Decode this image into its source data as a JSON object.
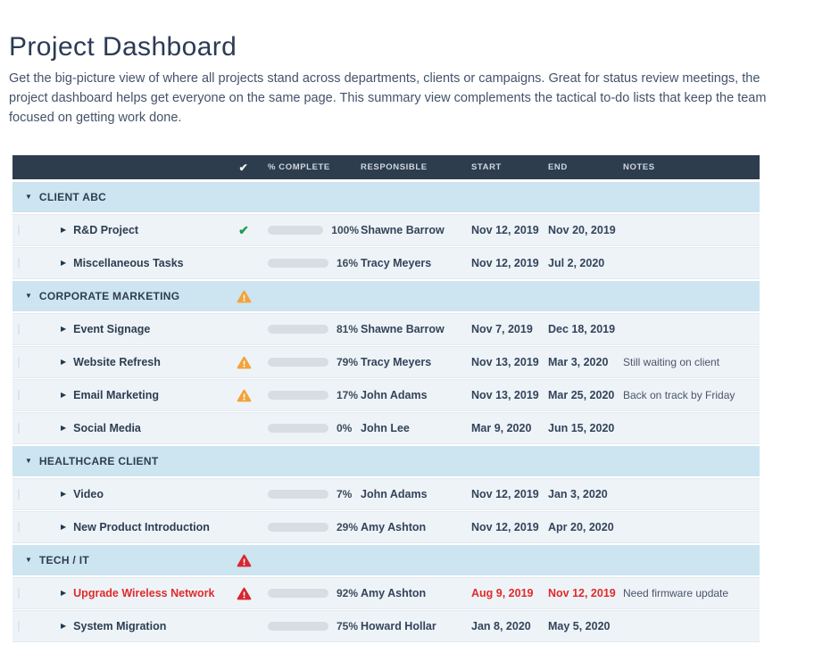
{
  "page": {
    "title": "Project Dashboard",
    "description": "Get the big-picture view of where all projects stand across departments, clients or campaigns. Great for status review meetings, the project dashboard helps get everyone on the same page. This summary view complements the tactical to-do lists that keep the team focused on getting work done."
  },
  "table": {
    "headers": {
      "check_icon": "✔",
      "complete": "% COMPLETE",
      "responsible": "RESPONSIBLE",
      "start": "START",
      "end": "END",
      "notes": "NOTES"
    },
    "groups": [
      {
        "name": "CLIENT ABC",
        "status": null,
        "rows": [
          {
            "task": "R&D Project",
            "status": "check",
            "percent": 100,
            "bar": "green",
            "responsible": "Shawne Barrow",
            "start": "Nov 12, 2019",
            "end": "Nov 20, 2019",
            "notes": "",
            "danger": false
          },
          {
            "task": "Miscellaneous Tasks",
            "status": null,
            "percent": 16,
            "bar": "blue",
            "responsible": "Tracy Meyers",
            "start": "Nov 12, 2019",
            "end": "Jul 2, 2020",
            "notes": "",
            "danger": false
          }
        ]
      },
      {
        "name": "CORPORATE MARKETING",
        "status": "warning",
        "rows": [
          {
            "task": "Event Signage",
            "status": null,
            "percent": 81,
            "bar": "blue",
            "responsible": "Shawne Barrow",
            "start": "Nov 7, 2019",
            "end": "Dec 18, 2019",
            "notes": "",
            "danger": false
          },
          {
            "task": "Website Refresh",
            "status": "warning",
            "percent": 79,
            "bar": "orange",
            "responsible": "Tracy Meyers",
            "start": "Nov 13, 2019",
            "end": "Mar 3, 2020",
            "notes": "Still waiting on client",
            "danger": false
          },
          {
            "task": "Email Marketing",
            "status": "warning",
            "percent": 17,
            "bar": "orange",
            "responsible": "John Adams",
            "start": "Nov 13, 2019",
            "end": "Mar 25, 2020",
            "notes": "Back on track by Friday",
            "danger": false
          },
          {
            "task": "Social Media",
            "status": null,
            "percent": 0,
            "bar": null,
            "responsible": "John Lee",
            "start": "Mar 9, 2020",
            "end": "Jun 15, 2020",
            "notes": "",
            "danger": false
          }
        ]
      },
      {
        "name": "HEALTHCARE CLIENT",
        "status": null,
        "rows": [
          {
            "task": "Video",
            "status": null,
            "percent": 7,
            "bar": "blue",
            "responsible": "John Adams",
            "start": "Nov 12, 2019",
            "end": "Jan 3, 2020",
            "notes": "",
            "danger": false
          },
          {
            "task": "New Product Introduction",
            "status": null,
            "percent": 29,
            "bar": "blue",
            "responsible": "Amy Ashton",
            "start": "Nov 12, 2019",
            "end": "Apr 20, 2020",
            "notes": "",
            "danger": false
          }
        ]
      },
      {
        "name": "TECH / IT",
        "status": "alert",
        "rows": [
          {
            "task": "Upgrade Wireless Network",
            "status": "alert",
            "percent": 92,
            "bar": "red",
            "responsible": "Amy Ashton",
            "start": "Aug 9, 2019",
            "end": "Nov 12, 2019",
            "notes": "Need firmware update",
            "danger": true
          },
          {
            "task": "System Migration",
            "status": null,
            "percent": 75,
            "bar": "blue",
            "responsible": "Howard Hollar",
            "start": "Jan 8, 2020",
            "end": "May 5, 2020",
            "notes": "",
            "danger": false
          }
        ]
      }
    ]
  },
  "colors": {
    "header_bg": "#2e3d4e",
    "header_text": "#cfd7df",
    "group_bg": "#cde4f1",
    "row_bg": "#eef3f8",
    "green": "#1b9850",
    "blue": "#2d72a8",
    "orange": "#f2a33c",
    "red": "#d7282f",
    "track": "#d8dde3",
    "danger_text": "#e02b2b",
    "check_green": "#1e9b4d"
  }
}
